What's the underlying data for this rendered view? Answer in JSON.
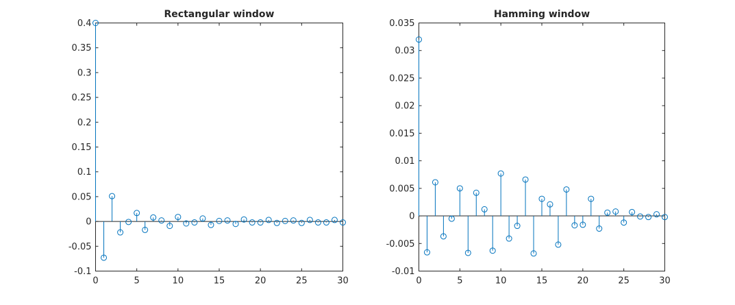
{
  "chart_data": [
    {
      "type": "stem",
      "title": "Rectangular window",
      "xlim": [
        0,
        30
      ],
      "ylim": [
        -0.1,
        0.4
      ],
      "xticks": [
        0,
        5,
        10,
        15,
        20,
        25,
        30
      ],
      "xtick_labels": [
        "0",
        "5",
        "10",
        "15",
        "20",
        "25",
        "30"
      ],
      "yticks": [
        -0.1,
        -0.05,
        0,
        0.05,
        0.1,
        0.15,
        0.2,
        0.25,
        0.3,
        0.35,
        0.4
      ],
      "ytick_labels": [
        "-0.1",
        "-0.05",
        "0",
        "0.05",
        "0.1",
        "0.15",
        "0.2",
        "0.25",
        "0.3",
        "0.35",
        "0.4"
      ],
      "grid": false,
      "color": "#0072BD",
      "x": [
        0,
        1,
        2,
        3,
        4,
        5,
        6,
        7,
        8,
        9,
        10,
        11,
        12,
        13,
        14,
        15,
        16,
        17,
        18,
        19,
        20,
        21,
        22,
        23,
        24,
        25,
        26,
        27,
        28,
        29,
        30
      ],
      "y": [
        0.4,
        -0.073,
        0.051,
        -0.022,
        -0.001,
        0.017,
        -0.017,
        0.008,
        0.002,
        -0.009,
        0.009,
        -0.004,
        -0.002,
        0.006,
        -0.007,
        0.001,
        0.002,
        -0.005,
        0.004,
        -0.002,
        -0.002,
        0.003,
        -0.003,
        0.001,
        0.002,
        -0.003,
        0.003,
        -0.002,
        -0.002,
        0.003,
        -0.002
      ]
    },
    {
      "type": "stem",
      "title": "Hamming window",
      "xlim": [
        0,
        30
      ],
      "ylim": [
        -0.01,
        0.035
      ],
      "xticks": [
        0,
        5,
        10,
        15,
        20,
        25,
        30
      ],
      "xtick_labels": [
        "0",
        "5",
        "10",
        "15",
        "20",
        "25",
        "30"
      ],
      "yticks": [
        -0.01,
        -0.005,
        0,
        0.005,
        0.01,
        0.015,
        0.02,
        0.025,
        0.03,
        0.035
      ],
      "ytick_labels": [
        "-0.01",
        "-0.005",
        "0",
        "0.005",
        "0.01",
        "0.015",
        "0.02",
        "0.025",
        "0.03",
        "0.035"
      ],
      "grid": false,
      "color": "#0072BD",
      "x": [
        0,
        1,
        2,
        3,
        4,
        5,
        6,
        7,
        8,
        9,
        10,
        11,
        12,
        13,
        14,
        15,
        16,
        17,
        18,
        19,
        20,
        21,
        22,
        23,
        24,
        25,
        26,
        27,
        28,
        29,
        30
      ],
      "y": [
        0.032,
        -0.0066,
        0.0061,
        -0.0037,
        -0.0005,
        0.005,
        -0.0067,
        0.0042,
        0.0012,
        -0.0063,
        0.0077,
        -0.0041,
        -0.0018,
        0.0066,
        -0.0068,
        0.0031,
        0.0021,
        -0.0052,
        0.0048,
        -0.0017,
        -0.0016,
        0.0031,
        -0.0023,
        0.0006,
        0.0008,
        -0.0012,
        0.0007,
        -0.0001,
        -0.0002,
        0.0003,
        -0.0002
      ]
    }
  ]
}
